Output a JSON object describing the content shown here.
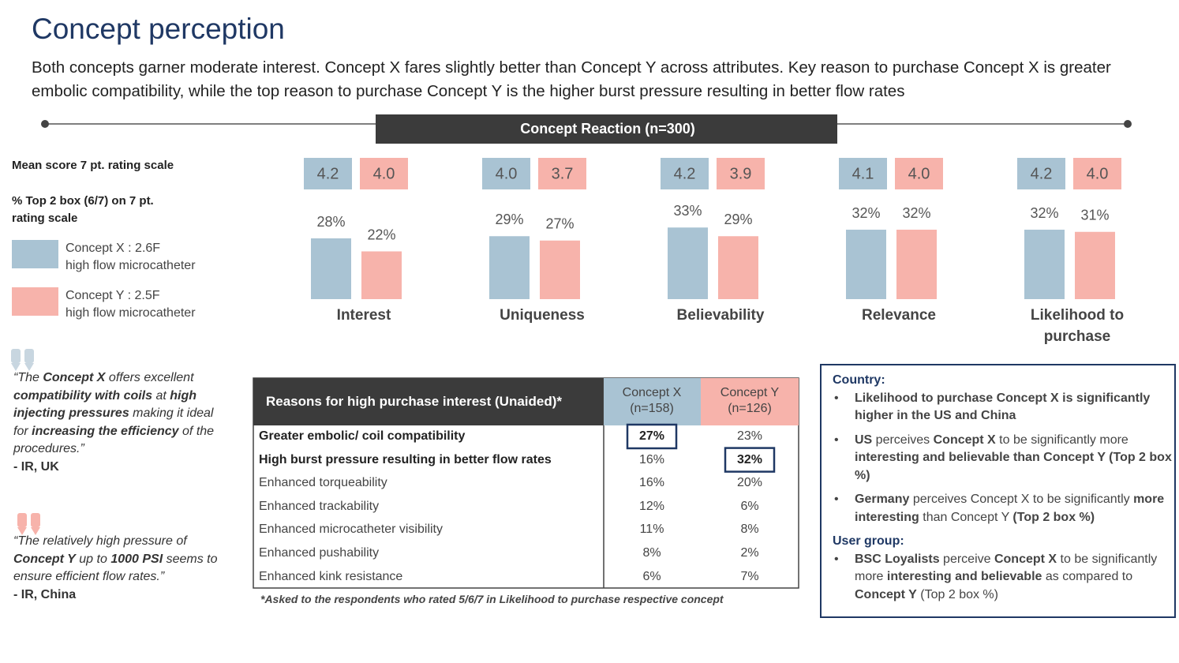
{
  "header": {
    "title": "Concept perception",
    "subtitle": "Both concepts garner moderate interest. Concept X fares slightly better than Concept Y across attributes. Key reason to purchase Concept X is greater embolic compatibility, while the top reason to purchase Concept Y is the higher burst pressure resulting in better flow rates"
  },
  "scale_labels": {
    "mean": "Mean score 7 pt. rating scale",
    "top2": "% Top 2 box (6/7) on 7 pt. rating scale"
  },
  "chart_data": {
    "type": "bar",
    "title": "Concept Reaction (n=300)",
    "categories": [
      "Interest",
      "Uniqueness",
      "Believability",
      "Relevance",
      "Likelihood to purchase"
    ],
    "series": [
      {
        "name": "Concept X : 2.6F\nhigh flow microcatheter",
        "color": "#a9c3d3",
        "values": [
          28,
          29,
          33,
          32,
          32
        ],
        "value_labels": [
          "28%",
          "29%",
          "33%",
          "32%",
          "32%"
        ],
        "means": [
          "4.2",
          "4.0",
          "4.2",
          "4.1",
          "4.2"
        ]
      },
      {
        "name": "Concept Y : 2.5F\nhigh flow microcatheter",
        "color": "#f7b3ab",
        "values": [
          22,
          27,
          29,
          32,
          31
        ],
        "value_labels": [
          "22%",
          "27%",
          "29%",
          "32%",
          "31%"
        ],
        "means": [
          "4.0",
          "3.7",
          "3.9",
          "4.0",
          "4.0"
        ]
      }
    ]
  },
  "quotes": [
    {
      "runs": [
        {
          "text": "“The "
        },
        {
          "text": "Concept X",
          "bold": true
        },
        {
          "text": " offers excellent "
        },
        {
          "text": "compatibility with coils",
          "bold": true
        },
        {
          "text": " at "
        },
        {
          "text": "high injecting pressures",
          "bold": true
        },
        {
          "text": " making it ideal for "
        },
        {
          "text": "increasing the efficiency",
          "bold": true
        },
        {
          "text": " of the procedures.”"
        }
      ],
      "author": "- IR, UK"
    },
    {
      "runs": [
        {
          "text": "“The relatively high pressure of "
        },
        {
          "text": "Concept Y",
          "bold": true
        },
        {
          "text": " up to "
        },
        {
          "text": "1000 PSI",
          "bold": true
        },
        {
          "text": " seems to ensure efficient flow rates.”"
        }
      ],
      "author": "- IR, China"
    }
  ],
  "table": {
    "title": "Reasons for high purchase interest (Unaided)*",
    "columns": [
      "Concept X (n=158)",
      "Concept Y (n=126)"
    ],
    "rows": [
      {
        "label": "Greater embolic/ coil compatibility",
        "values": [
          "27%",
          "23%"
        ],
        "bold": true,
        "boxed": 0
      },
      {
        "label": "High burst pressure resulting in better flow rates",
        "values": [
          "16%",
          "32%"
        ],
        "bold": true,
        "boxed": 1
      },
      {
        "label": "Enhanced torqueability",
        "values": [
          "16%",
          "20%"
        ]
      },
      {
        "label": "Enhanced trackability",
        "values": [
          "12%",
          "6%"
        ]
      },
      {
        "label": "Enhanced microcatheter visibility",
        "values": [
          "11%",
          "8%"
        ]
      },
      {
        "label": "Enhanced pushability",
        "values": [
          "8%",
          "2%"
        ]
      },
      {
        "label": "Enhanced kink resistance",
        "values": [
          "6%",
          "7%"
        ]
      }
    ],
    "footnote": "*Asked to the respondents who rated 5/6/7 in Likelihood to purchase respective concept"
  },
  "findings": [
    {
      "heading": "Country:",
      "bullets": [
        [
          {
            "text": "Likelihood to purchase Concept X is significantly higher in the US and China",
            "bold": true
          }
        ],
        [
          {
            "text": "US",
            "bold": true
          },
          {
            "text": " perceives "
          },
          {
            "text": "Concept X",
            "bold": true
          },
          {
            "text": " to be significantly more "
          },
          {
            "text": "interesting and believable than Concept Y (Top 2 box %)",
            "bold": true
          }
        ],
        [
          {
            "text": "Germany",
            "bold": true
          },
          {
            "text": " perceives Concept X to be significantly "
          },
          {
            "text": "more interesting",
            "bold": true
          },
          {
            "text": " than Concept Y "
          },
          {
            "text": "(Top 2 box %)",
            "bold": true
          }
        ]
      ]
    },
    {
      "heading": "User group:",
      "bullets": [
        [
          {
            "text": "BSC Loyalists",
            "bold": true
          },
          {
            "text": " perceive "
          },
          {
            "text": "Concept X",
            "bold": true
          },
          {
            "text": " to be significantly more "
          },
          {
            "text": "interesting and believable",
            "bold": true
          },
          {
            "text": " as compared to "
          },
          {
            "text": "Concept Y",
            "bold": true
          },
          {
            "text": " (Top 2 box %)"
          }
        ]
      ]
    }
  ]
}
